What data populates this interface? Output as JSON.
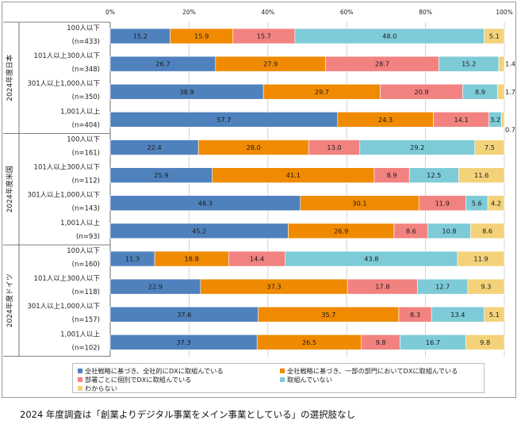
{
  "chart_data": {
    "type": "bar",
    "orientation": "horizontal",
    "stacked": true,
    "percent_scale": true,
    "x_ticks": [
      "0%",
      "20%",
      "40%",
      "60%",
      "80%",
      "100%"
    ],
    "xlim": [
      0,
      100
    ],
    "series": [
      {
        "name": "全社戦略に基づき、全社的にDXに取組んでいる",
        "color": "#4f81bd"
      },
      {
        "name": "全社戦略に基づき、一部の部門においてDXに取組んでいる",
        "color": "#f08a00"
      },
      {
        "name": "部署ごとに個別でDXに取組んでいる",
        "color": "#f28280"
      },
      {
        "name": "取組んでいない",
        "color": "#7ecbd8"
      },
      {
        "name": "わからない",
        "color": "#f3d27a"
      }
    ],
    "groups": [
      {
        "label": "2024年度日本",
        "rows": [
          {
            "size": "100人以下",
            "n": "(n=433)",
            "values": [
              15.2,
              15.9,
              15.7,
              48.0,
              5.1
            ],
            "labels": [
              "15.2",
              "15.9",
              "15.7",
              "48.0",
              "5.1"
            ]
          },
          {
            "size": "101人以上300人以下",
            "n": "(n=348)",
            "values": [
              26.7,
              27.9,
              28.7,
              15.2,
              1.4
            ],
            "labels": [
              "26.7",
              "27.9",
              "28.7",
              "15.2",
              "1.4"
            ]
          },
          {
            "size": "301人以上1,000人以下",
            "n": "(n=350)",
            "values": [
              38.9,
              29.7,
              20.9,
              8.9,
              1.7
            ],
            "labels": [
              "38.9",
              "29.7",
              "20.9",
              "8.9",
              "1.7"
            ]
          },
          {
            "size": "1,001人以上",
            "n": "(n=404)",
            "values": [
              57.7,
              24.3,
              14.1,
              3.2,
              0.7
            ],
            "labels": [
              "57.7",
              "24.3",
              "14.1",
              "3.2",
              "0.7"
            ]
          }
        ]
      },
      {
        "label": "2024年度米国",
        "rows": [
          {
            "size": "100人以下",
            "n": "(n=161)",
            "values": [
              22.4,
              28.0,
              13.0,
              29.2,
              7.5
            ],
            "labels": [
              "22.4",
              "28.0",
              "13.0",
              "29.2",
              "7.5"
            ]
          },
          {
            "size": "101人以上300人以下",
            "n": "(n=112)",
            "values": [
              25.9,
              41.1,
              8.9,
              12.5,
              11.6
            ],
            "labels": [
              "25.9",
              "41.1",
              "8.9",
              "12.5",
              "11.6"
            ]
          },
          {
            "size": "301人以上1,000人以下",
            "n": "(n=143)",
            "values": [
              48.3,
              30.1,
              11.9,
              5.6,
              4.2
            ],
            "labels": [
              "48.3",
              "30.1",
              "11.9",
              "5.6",
              "4.2"
            ]
          },
          {
            "size": "1,001人以上",
            "n": "(n=93)",
            "values": [
              45.2,
              26.9,
              8.6,
              10.8,
              8.6
            ],
            "labels": [
              "45.2",
              "26.9",
              "8.6",
              "10.8",
              "8.6"
            ]
          }
        ]
      },
      {
        "label": "2024年度ドイツ",
        "rows": [
          {
            "size": "100人以下",
            "n": "(n=160)",
            "values": [
              11.3,
              18.8,
              14.4,
              43.8,
              11.9
            ],
            "labels": [
              "11.3",
              "18.8",
              "14.4",
              "43.8",
              "11.9"
            ]
          },
          {
            "size": "101人以上300人以下",
            "n": "(n=118)",
            "values": [
              22.9,
              37.3,
              17.8,
              12.7,
              9.3
            ],
            "labels": [
              "22.9",
              "37.3",
              "17.8",
              "12.7",
              "9.3"
            ]
          },
          {
            "size": "301人以上1,000人以下",
            "n": "(n=157)",
            "values": [
              37.6,
              35.7,
              8.3,
              13.4,
              5.1
            ],
            "labels": [
              "37.6",
              "35.7",
              "8.3",
              "13.4",
              "5.1"
            ]
          },
          {
            "size": "1,001人以上",
            "n": "(n=102)",
            "values": [
              37.3,
              26.5,
              9.8,
              16.7,
              9.8
            ],
            "labels": [
              "37.3",
              "26.5",
              "9.8",
              "16.7",
              "9.8"
            ]
          }
        ]
      }
    ],
    "legend_position": "bottom"
  },
  "caption": "2024 年度調査は「創業よりデジタル事業をメイン事業としている」の選択肢なし"
}
